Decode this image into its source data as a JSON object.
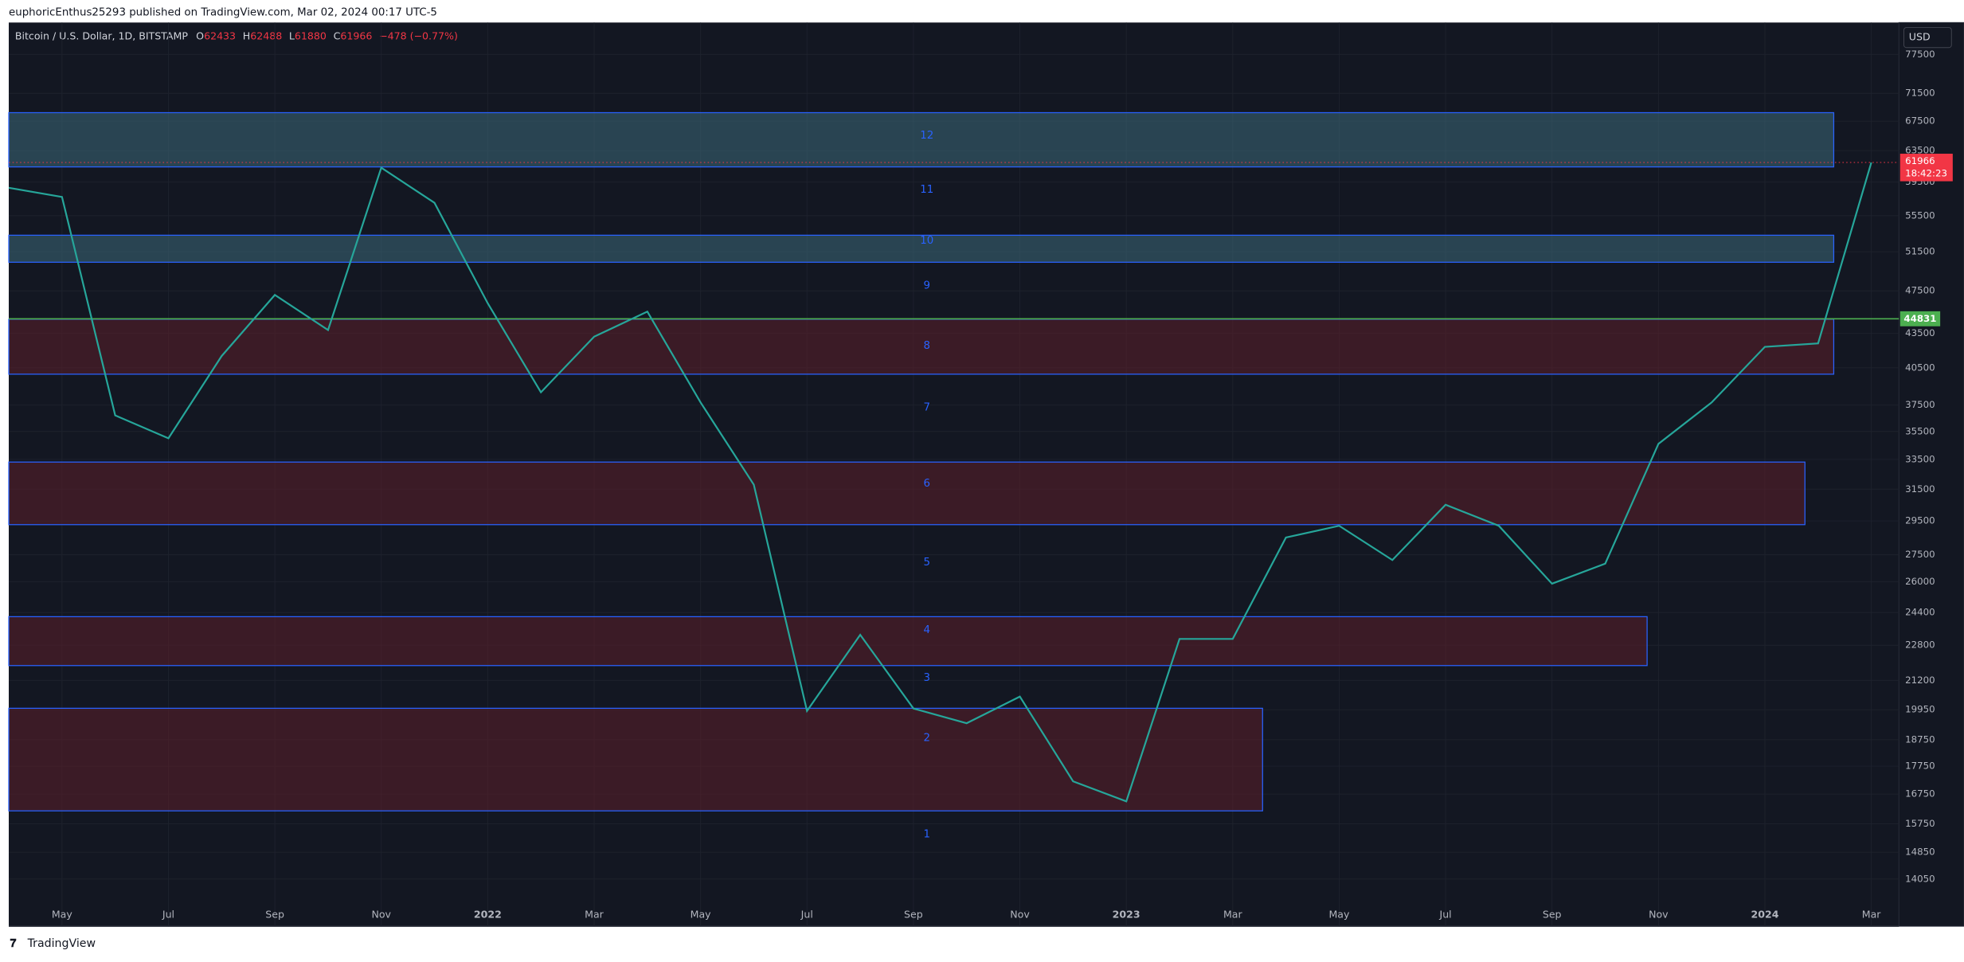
{
  "header": {
    "title": "euphoricEnthus25293 published on TradingView.com, Mar 02, 2024 00:17 UTC-5"
  },
  "legend": {
    "symbol": "Bitcoin / U.S. Dollar, 1D, BITSTAMP",
    "ohlc": [
      {
        "key": "O",
        "value": 62433
      },
      {
        "key": "H",
        "value": 62488
      },
      {
        "key": "L",
        "value": 61880
      },
      {
        "key": "C",
        "value": 61966
      }
    ],
    "change": "−478 (−0.77%)"
  },
  "footer": {
    "brand": "TradingView"
  },
  "chart_data": {
    "type": "line",
    "currency": "USD",
    "log_scale": true,
    "color": "#26a69a",
    "x": [
      "2021-04",
      "2021-05",
      "2021-06",
      "2021-07",
      "2021-08",
      "2021-09",
      "2021-10",
      "2021-11",
      "2021-12",
      "2022-01",
      "2022-02",
      "2022-03",
      "2022-04",
      "2022-05",
      "2022-06",
      "2022-07",
      "2022-08",
      "2022-09",
      "2022-10",
      "2022-11",
      "2022-12",
      "2023-01",
      "2023-02",
      "2023-03",
      "2023-04",
      "2023-05",
      "2023-06",
      "2023-07",
      "2023-08",
      "2023-09",
      "2023-10",
      "2023-11",
      "2023-12",
      "2024-01",
      "2024-02",
      "2024-03"
    ],
    "values": [
      58800,
      57700,
      36700,
      35000,
      41500,
      47100,
      43800,
      61300,
      57000,
      46300,
      38500,
      43200,
      45500,
      37700,
      31800,
      19900,
      23300,
      20000,
      19400,
      20500,
      17200,
      16500,
      23100,
      23100,
      28500,
      29200,
      27200,
      30500,
      29200,
      25900,
      27000,
      34600,
      37700,
      42300,
      42600,
      61966
    ],
    "xlim": [
      "2021-04",
      "2024-03"
    ],
    "xticks": [
      {
        "value": "2021-05",
        "label": "May"
      },
      {
        "value": "2021-07",
        "label": "Jul"
      },
      {
        "value": "2021-09",
        "label": "Sep"
      },
      {
        "value": "2021-11",
        "label": "Nov"
      },
      {
        "value": "2022-01",
        "label": "2022"
      },
      {
        "value": "2022-03",
        "label": "Mar"
      },
      {
        "value": "2022-05",
        "label": "May"
      },
      {
        "value": "2022-07",
        "label": "Jul"
      },
      {
        "value": "2022-09",
        "label": "Sep"
      },
      {
        "value": "2022-11",
        "label": "Nov"
      },
      {
        "value": "2023-01",
        "label": "2023"
      },
      {
        "value": "2023-03",
        "label": "Mar"
      },
      {
        "value": "2023-05",
        "label": "May"
      },
      {
        "value": "2023-07",
        "label": "Jul"
      },
      {
        "value": "2023-09",
        "label": "Sep"
      },
      {
        "value": "2023-11",
        "label": "Nov"
      },
      {
        "value": "2024-01",
        "label": "2024"
      },
      {
        "value": "2024-03",
        "label": "Mar"
      }
    ],
    "ylim": [
      12740,
      82800
    ],
    "yticks": [
      77500,
      71500,
      67500,
      63500,
      59500,
      55500,
      51500,
      47500,
      43500,
      40500,
      37500,
      35500,
      33500,
      31500,
      29500,
      27500,
      26000,
      24400,
      22800,
      21200,
      19950,
      18750,
      17750,
      16750,
      15750,
      14850,
      14050
    ],
    "grid": true,
    "zones": [
      {
        "top": 68700,
        "bottom": 61400,
        "color": "#3d6a7a"
      },
      {
        "top": 53300,
        "bottom": 50400,
        "color": "#3d6a7a"
      },
      {
        "top": 44790,
        "bottom": 39970,
        "color": "#5c1f2a"
      },
      {
        "top": 33320,
        "bottom": 29270,
        "color": "#5c1f2a"
      },
      {
        "top": 24190,
        "bottom": 21860,
        "color": "#5c1f2a"
      },
      {
        "top": 20010,
        "bottom": 16180,
        "color": "#5c1f2a"
      }
    ],
    "zone_labels": [
      {
        "label": "1",
        "value": 15420
      },
      {
        "label": "2",
        "value": 18820
      },
      {
        "label": "3",
        "value": 21320
      },
      {
        "label": "4",
        "value": 23530
      },
      {
        "label": "5",
        "value": 27070
      },
      {
        "label": "6",
        "value": 31870
      },
      {
        "label": "7",
        "value": 37330
      },
      {
        "label": "8",
        "value": 42390
      },
      {
        "label": "9",
        "value": 48010
      },
      {
        "label": "10",
        "value": 52700
      },
      {
        "label": "11",
        "value": 58610
      },
      {
        "label": "12",
        "value": 65530
      }
    ],
    "level": {
      "value": 44831,
      "color": "#4caf50"
    },
    "last_price": {
      "value": 61966,
      "countdown": "18:42:23",
      "color": "#f23645"
    }
  }
}
